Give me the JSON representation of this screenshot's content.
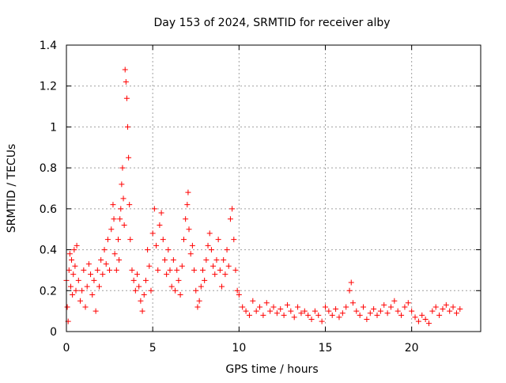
{
  "chart_data": {
    "type": "scatter",
    "title": "Day 153 of 2024, SRMTID for receiver alby",
    "xlabel": "GPS time / hours",
    "ylabel": "SRMTID / TECUs",
    "xlim": [
      0,
      24
    ],
    "ylim": [
      0,
      1.4
    ],
    "xticks": [
      0,
      5,
      10,
      15,
      20
    ],
    "xtick_labels": [
      "0",
      "5",
      "10",
      "15",
      "20"
    ],
    "yticks": [
      0,
      0.2,
      0.4,
      0.6,
      0.8,
      1.0,
      1.2,
      1.4
    ],
    "ytick_labels": [
      "0",
      "0.2",
      "0.4",
      "0.6",
      "0.8",
      "1",
      "1.2",
      "1.4"
    ],
    "grid": true,
    "marker": "plus",
    "color": "#ff0000",
    "series": [
      {
        "name": "SRMTID",
        "x": [
          0.0,
          0.05,
          0.1,
          0.15,
          0.2,
          0.25,
          0.3,
          0.35,
          0.4,
          0.45,
          0.5,
          0.55,
          0.6,
          0.7,
          0.8,
          0.9,
          1.0,
          1.1,
          1.2,
          1.3,
          1.4,
          1.5,
          1.6,
          1.7,
          1.8,
          1.9,
          2.0,
          2.1,
          2.2,
          2.3,
          2.4,
          2.5,
          2.6,
          2.7,
          2.75,
          2.8,
          2.9,
          3.0,
          3.05,
          3.1,
          3.15,
          3.2,
          3.25,
          3.3,
          3.35,
          3.4,
          3.45,
          3.5,
          3.55,
          3.6,
          3.65,
          3.7,
          3.8,
          3.9,
          4.0,
          4.1,
          4.2,
          4.3,
          4.4,
          4.5,
          4.6,
          4.7,
          4.8,
          4.9,
          5.0,
          5.1,
          5.2,
          5.3,
          5.4,
          5.5,
          5.6,
          5.7,
          5.8,
          5.9,
          6.0,
          6.1,
          6.2,
          6.3,
          6.4,
          6.5,
          6.6,
          6.7,
          6.8,
          6.9,
          7.0,
          7.05,
          7.1,
          7.2,
          7.3,
          7.4,
          7.5,
          7.6,
          7.7,
          7.8,
          7.9,
          8.0,
          8.1,
          8.2,
          8.3,
          8.4,
          8.5,
          8.6,
          8.7,
          8.8,
          8.9,
          9.0,
          9.1,
          9.2,
          9.3,
          9.4,
          9.5,
          9.6,
          9.7,
          9.8,
          9.9,
          10.0,
          10.2,
          10.4,
          10.6,
          10.8,
          11.0,
          11.2,
          11.4,
          11.6,
          11.8,
          12.0,
          12.2,
          12.4,
          12.6,
          12.8,
          13.0,
          13.2,
          13.4,
          13.6,
          13.8,
          14.0,
          14.2,
          14.4,
          14.6,
          14.8,
          15.0,
          15.2,
          15.4,
          15.6,
          15.8,
          16.0,
          16.2,
          16.4,
          16.5,
          16.6,
          16.8,
          17.0,
          17.2,
          17.4,
          17.6,
          17.8,
          18.0,
          18.2,
          18.4,
          18.6,
          18.8,
          19.0,
          19.2,
          19.4,
          19.6,
          19.8,
          20.0,
          20.2,
          20.4,
          20.6,
          20.8,
          21.0,
          21.2,
          21.4,
          21.6,
          21.8,
          22.0,
          22.2,
          22.4,
          22.6,
          22.8
        ],
        "y": [
          0.25,
          0.12,
          0.05,
          0.3,
          0.38,
          0.22,
          0.35,
          0.18,
          0.28,
          0.4,
          0.32,
          0.2,
          0.42,
          0.25,
          0.15,
          0.2,
          0.3,
          0.12,
          0.22,
          0.33,
          0.28,
          0.18,
          0.25,
          0.1,
          0.3,
          0.22,
          0.35,
          0.28,
          0.4,
          0.33,
          0.45,
          0.3,
          0.5,
          0.62,
          0.55,
          0.38,
          0.3,
          0.45,
          0.35,
          0.55,
          0.6,
          0.72,
          0.8,
          0.65,
          0.52,
          1.28,
          1.22,
          1.14,
          1.0,
          0.85,
          0.62,
          0.45,
          0.3,
          0.25,
          0.2,
          0.28,
          0.22,
          0.15,
          0.1,
          0.18,
          0.25,
          0.4,
          0.32,
          0.2,
          0.48,
          0.6,
          0.42,
          0.3,
          0.52,
          0.58,
          0.45,
          0.35,
          0.28,
          0.4,
          0.3,
          0.22,
          0.35,
          0.2,
          0.3,
          0.25,
          0.18,
          0.32,
          0.45,
          0.55,
          0.62,
          0.68,
          0.5,
          0.38,
          0.42,
          0.3,
          0.2,
          0.12,
          0.15,
          0.22,
          0.3,
          0.25,
          0.35,
          0.42,
          0.48,
          0.4,
          0.32,
          0.28,
          0.35,
          0.45,
          0.3,
          0.22,
          0.35,
          0.28,
          0.4,
          0.32,
          0.55,
          0.6,
          0.45,
          0.3,
          0.2,
          0.18,
          0.12,
          0.1,
          0.08,
          0.15,
          0.1,
          0.12,
          0.08,
          0.14,
          0.1,
          0.12,
          0.09,
          0.11,
          0.08,
          0.13,
          0.1,
          0.07,
          0.12,
          0.09,
          0.1,
          0.08,
          0.06,
          0.1,
          0.08,
          0.05,
          0.12,
          0.1,
          0.08,
          0.11,
          0.07,
          0.09,
          0.12,
          0.2,
          0.24,
          0.14,
          0.1,
          0.08,
          0.12,
          0.06,
          0.09,
          0.11,
          0.08,
          0.1,
          0.13,
          0.09,
          0.12,
          0.15,
          0.1,
          0.08,
          0.12,
          0.14,
          0.1,
          0.07,
          0.05,
          0.08,
          0.06,
          0.04,
          0.1,
          0.12,
          0.08,
          0.11,
          0.13,
          0.1,
          0.12,
          0.09,
          0.11
        ]
      }
    ]
  }
}
